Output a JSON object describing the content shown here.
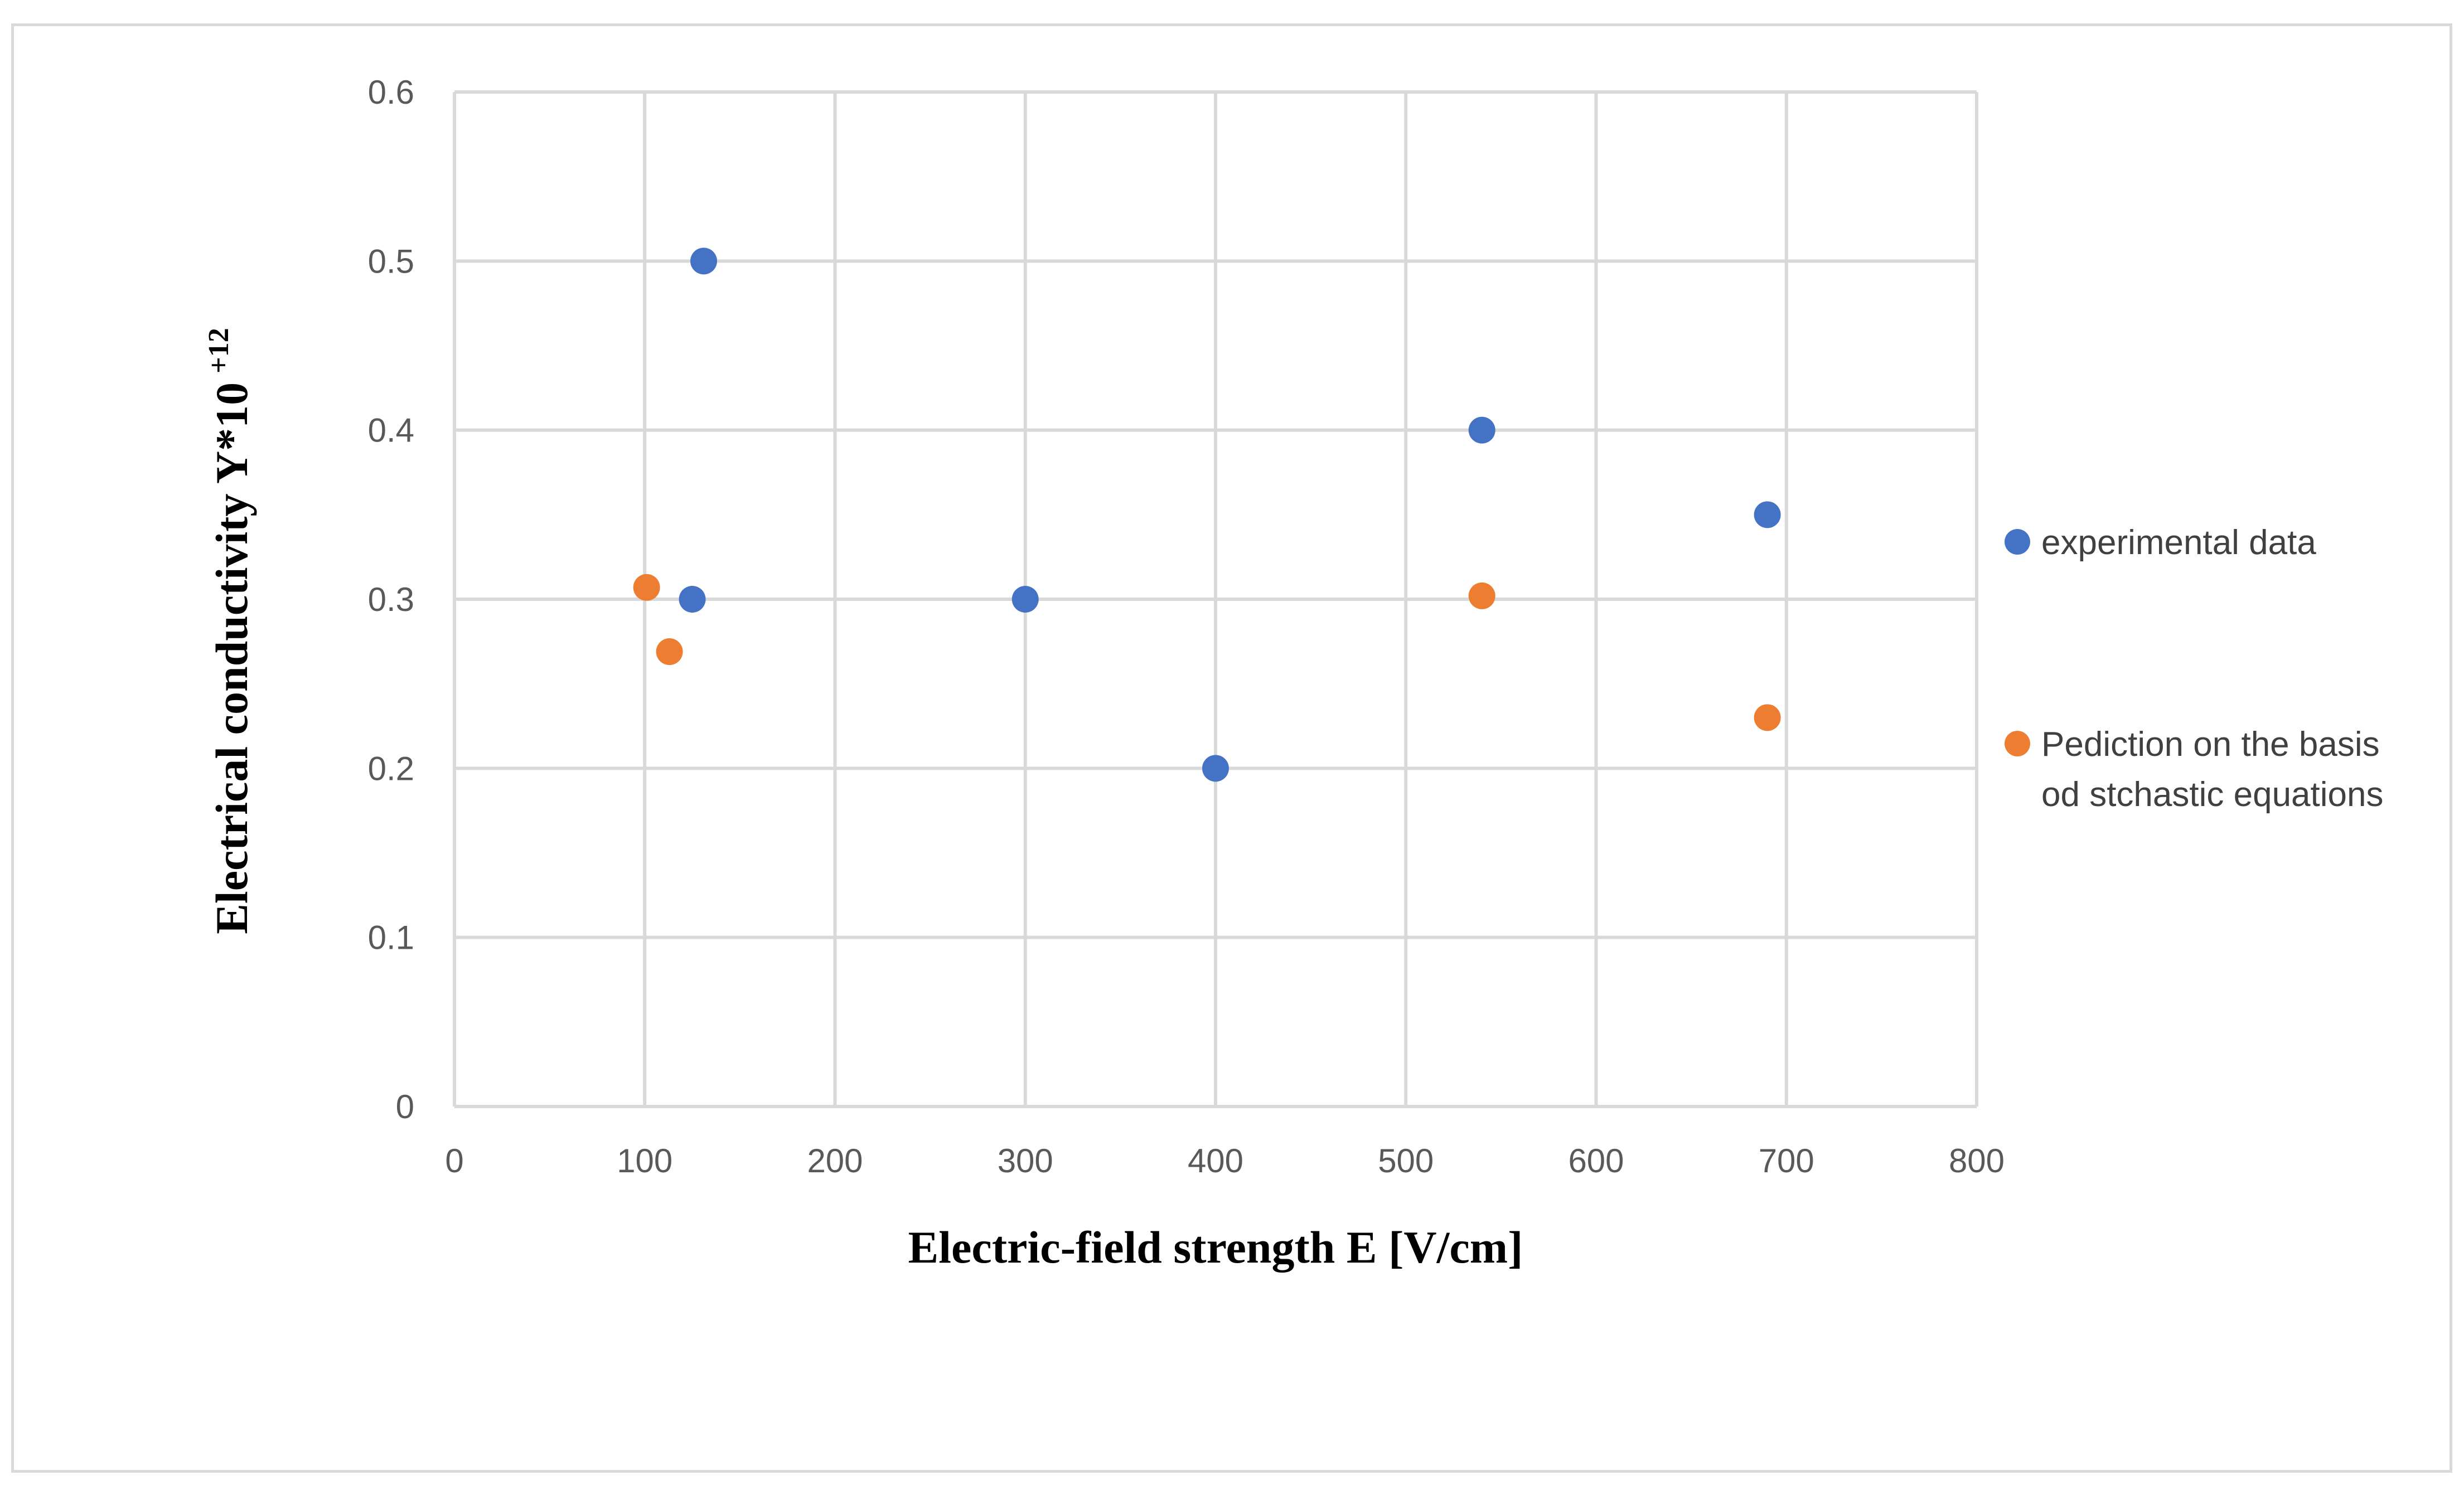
{
  "chart_data": {
    "type": "scatter",
    "title": "",
    "xlabel": "Electric-field strength E [V/cm]",
    "ylabel": {
      "main": "Electrical conductivity Y*10",
      "superscript": "+12"
    },
    "xlim": [
      0,
      800
    ],
    "ylim": [
      0,
      0.6
    ],
    "x_ticks": [
      0,
      100,
      200,
      300,
      400,
      500,
      600,
      700,
      800
    ],
    "y_ticks": [
      0,
      0.1,
      0.2,
      0.3,
      0.4,
      0.5,
      0.6
    ],
    "x_tick_labels": [
      "0",
      "100",
      "200",
      "300",
      "400",
      "500",
      "600",
      "700",
      "800"
    ],
    "y_tick_labels": [
      "0",
      "0.1",
      "0.2",
      "0.3",
      "0.4",
      "0.5",
      "0.6"
    ],
    "grid": true,
    "legend_position": "right",
    "series": [
      {
        "name": "experimental data",
        "color": "#4472c4",
        "points": [
          {
            "x": 131,
            "y": 0.5
          },
          {
            "x": 125,
            "y": 0.3
          },
          {
            "x": 300,
            "y": 0.3
          },
          {
            "x": 400,
            "y": 0.2
          },
          {
            "x": 540,
            "y": 0.4
          },
          {
            "x": 690,
            "y": 0.35
          }
        ]
      },
      {
        "name": "Pediction on the basis od stchastic equations",
        "legend_lines": [
          "Pediction on the basis",
          "od stchastic equations"
        ],
        "color": "#ed7d31",
        "points": [
          {
            "x": 101,
            "y": 0.307
          },
          {
            "x": 113,
            "y": 0.269
          },
          {
            "x": 540,
            "y": 0.302
          },
          {
            "x": 690,
            "y": 0.23
          }
        ]
      }
    ]
  }
}
